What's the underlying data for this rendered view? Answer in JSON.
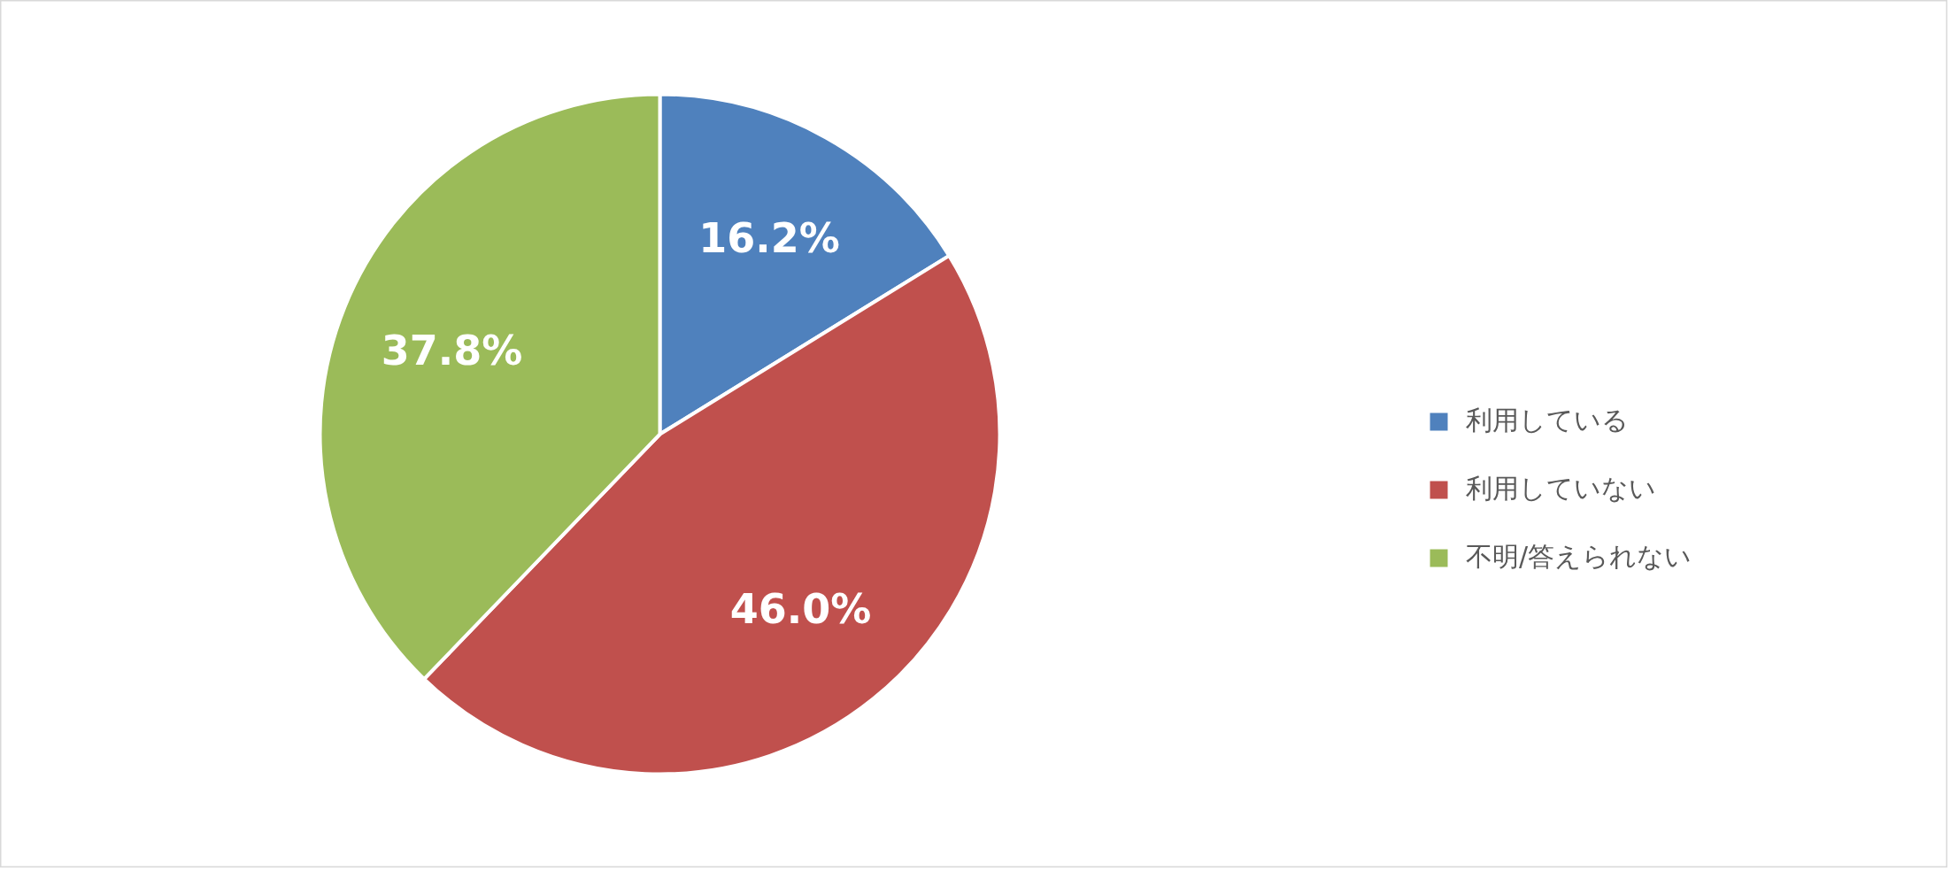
{
  "chart_data": {
    "type": "pie",
    "categories": [
      "利用している",
      "利用していない",
      "不明/答えられない"
    ],
    "values": [
      16.2,
      46.0,
      37.8
    ],
    "colors": [
      "#4f81bd",
      "#c0504d",
      "#9bbb59"
    ],
    "value_labels": [
      "16.2%",
      "46.0%",
      "37.8%"
    ],
    "legend": "right"
  }
}
